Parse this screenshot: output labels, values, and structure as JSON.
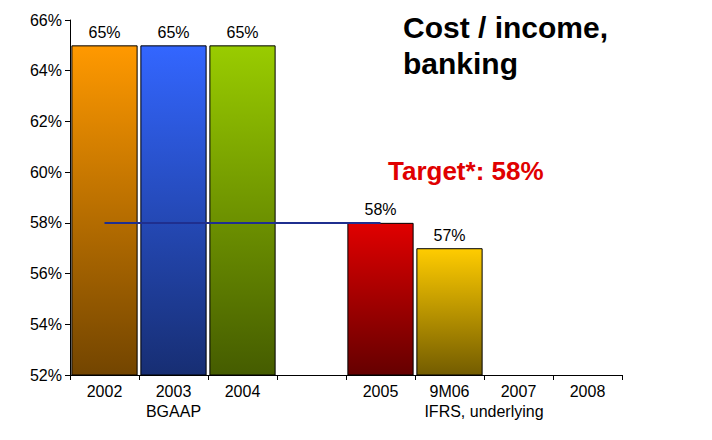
{
  "chart_data": {
    "type": "bar",
    "title": "Cost / income, banking",
    "categories": [
      "2002",
      "2003",
      "2004",
      null,
      "2005",
      "9M06",
      "2007",
      "2008"
    ],
    "values": [
      65,
      65,
      65,
      null,
      58,
      57,
      null,
      null
    ],
    "value_labels": [
      "65%",
      "65%",
      "65%",
      null,
      "58%",
      "57%",
      null,
      null
    ],
    "colors": [
      "#ff9900",
      "#3366ff",
      "#99cc00",
      null,
      "#e00000",
      "#ffcc00",
      null,
      null
    ],
    "ylim": [
      52,
      66
    ],
    "yticks": [
      {
        "value": 52,
        "label": "52%"
      },
      {
        "value": 54,
        "label": "54%"
      },
      {
        "value": 56,
        "label": "56%"
      },
      {
        "value": 58,
        "label": "58%"
      },
      {
        "value": 60,
        "label": "60%"
      },
      {
        "value": 62,
        "label": "62%"
      },
      {
        "value": 64,
        "label": "64%"
      },
      {
        "value": 66,
        "label": "66%"
      }
    ],
    "target": {
      "value": 58,
      "from": "2002",
      "to": "2005",
      "color": "#1f2f8f"
    },
    "annotations": [
      {
        "text": "Target*: 58%",
        "color": "#e00000"
      }
    ],
    "groups": [
      {
        "label": "BGAAP",
        "from": "2002",
        "to": "2004"
      },
      {
        "label": "IFRS, underlying",
        "from": "2005",
        "to": "2008"
      }
    ],
    "data_labels": true,
    "grid": false
  }
}
